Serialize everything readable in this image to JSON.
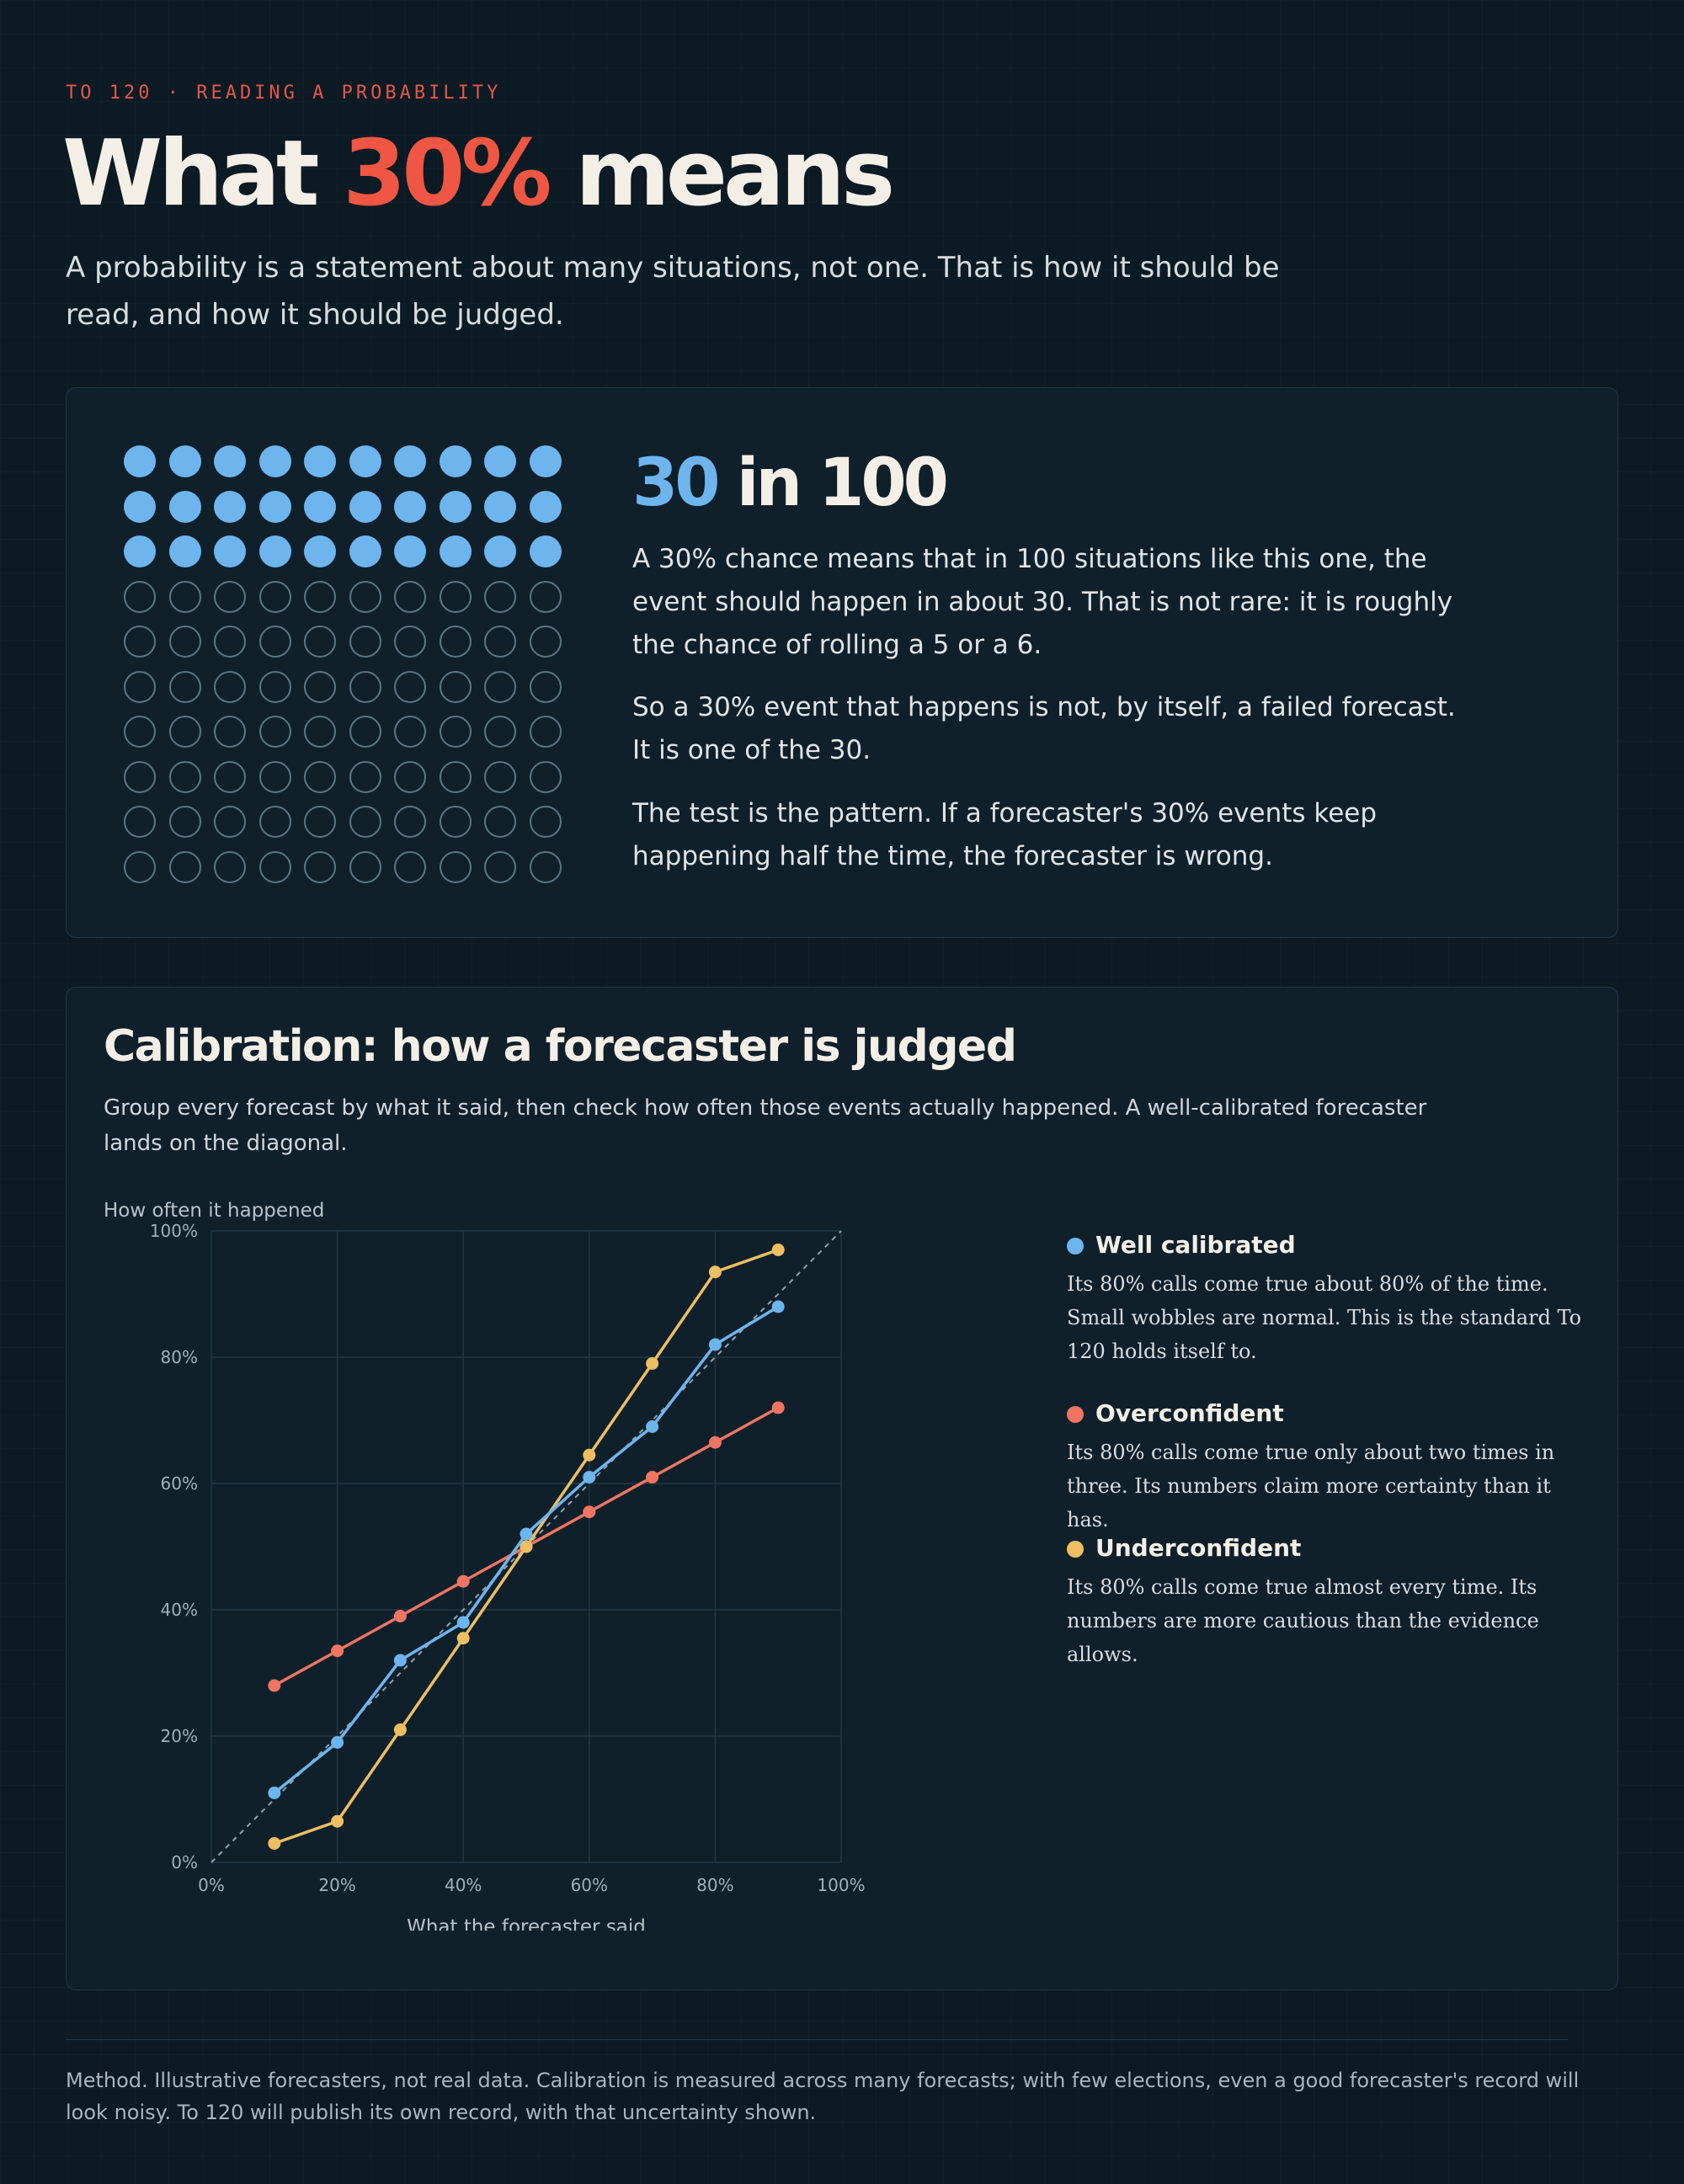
{
  "header": {
    "kicker": "TO 120 · READING A PROBABILITY",
    "title_pre": "What",
    "title_accent": "30%",
    "title_post": "means",
    "lede": "A probability is a statement about many situations, not one. That is how it should be read, and how it should be judged."
  },
  "explainer": {
    "total_dots": 100,
    "filled_dots": 30,
    "heading_number": "30",
    "heading_rest": "in 100",
    "paragraphs": [
      "A 30% chance means that in 100 situations like this one, the event should happen in about 30. That is not rare: it is roughly the chance of rolling a 5 or a 6.",
      "So a 30% event that happens is not, by itself, a failed forecast. It is one of the 30.",
      "The test is the pattern. If a forecaster's 30% events keep happening half the time, the forecaster is wrong."
    ]
  },
  "calibration": {
    "title": "Calibration: how a forecaster is judged",
    "subtitle": "Group every forecast by what it said, then check how often those events actually happened. A well-calibrated forecaster lands on the diagonal.",
    "legend": [
      {
        "name": "Well calibrated",
        "color": "#6eb5ee",
        "desc": "Its 80% calls come true about 80% of the time. Small wobbles are normal. This is the standard To 120 holds itself to."
      },
      {
        "name": "Overconfident",
        "color": "#ee7562",
        "desc": "Its 80% calls come true only about two times in three. Its numbers claim more certainty than it has."
      },
      {
        "name": "Underconfident",
        "color": "#edbe62",
        "desc": "Its 80% calls come true almost every time. Its numbers are more cautious than the evidence allows."
      }
    ]
  },
  "chart_data": {
    "type": "line",
    "title": "",
    "xlabel": "What the forecaster said",
    "ylabel": "How often it happened",
    "xlim": [
      0,
      100
    ],
    "ylim": [
      0,
      100
    ],
    "x_ticks": [
      "0%",
      "20%",
      "40%",
      "60%",
      "80%",
      "100%"
    ],
    "y_ticks": [
      "0%",
      "20%",
      "40%",
      "60%",
      "80%",
      "100%"
    ],
    "grid": true,
    "reference_line": "diagonal",
    "x": [
      10,
      20,
      30,
      40,
      50,
      60,
      70,
      80,
      90
    ],
    "series": [
      {
        "name": "Well calibrated",
        "color": "#6eb5ee",
        "values": [
          11,
          19,
          32,
          38,
          52,
          61,
          69,
          82,
          88
        ]
      },
      {
        "name": "Overconfident",
        "color": "#ee7562",
        "values": [
          28,
          33.5,
          39,
          44.5,
          50,
          55.5,
          61,
          66.5,
          72
        ]
      },
      {
        "name": "Underconfident",
        "color": "#edbe62",
        "values": [
          3,
          6.5,
          21,
          35.5,
          50,
          64.5,
          79,
          93.5,
          97
        ]
      }
    ],
    "line_end_labels": [
      "Underconfident",
      "Well calibrated",
      "Overconfident"
    ]
  },
  "footer": {
    "method": "Method. Illustrative forecasters, not real data. Calibration is measured across many forecasts; with few elections, even a good forecaster's record will look noisy. To 120 will publish its own record, with that uncertainty shown."
  }
}
